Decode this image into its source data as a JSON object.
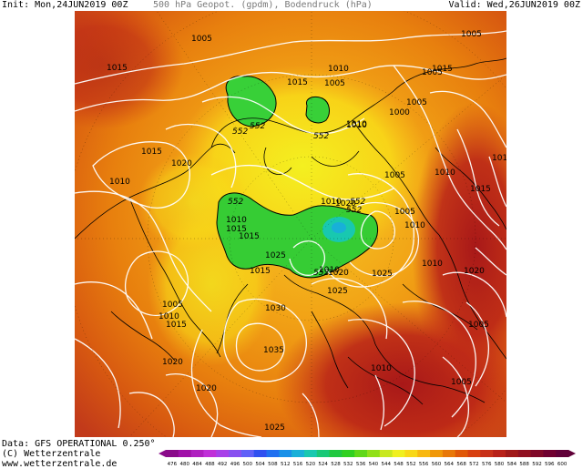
{
  "header": {
    "init": "Init: Mon,24JUN2019 00Z",
    "title": "500 hPa Geopot. (gpdm), Bodendruck (hPa)",
    "valid": "Valid: Wed,26JUN2019 00Z"
  },
  "footer": {
    "data_source": "Data: GFS OPERATIONAL 0.250°",
    "copyright": "(C) Wetterzentrale",
    "url": "www.wetterzentrale.de"
  },
  "colorbar": {
    "ticks": [
      "476",
      "480",
      "484",
      "488",
      "492",
      "496",
      "500",
      "504",
      "508",
      "512",
      "516",
      "520",
      "524",
      "528",
      "532",
      "536",
      "540",
      "544",
      "548",
      "552",
      "556",
      "560",
      "564",
      "568",
      "572",
      "576",
      "580",
      "584",
      "588",
      "592",
      "596",
      "600"
    ],
    "colors": [
      "#8a0a8a",
      "#a010a8",
      "#b020c0",
      "#c030d8",
      "#a840e8",
      "#8850f0",
      "#6060f8",
      "#3050f0",
      "#2070f0",
      "#1890e8",
      "#18b0d8",
      "#18c8b0",
      "#18c878",
      "#20c840",
      "#30d020",
      "#60d818",
      "#90e018",
      "#c8e820",
      "#f0f020",
      "#f8d818",
      "#f8b810",
      "#f09808",
      "#e87808",
      "#e05808",
      "#d84010",
      "#c83018",
      "#b82018",
      "#a01818",
      "#901020",
      "#800828",
      "#700030",
      "#600038"
    ]
  },
  "map_labels": [
    {
      "text": "1005"
    },
    {
      "text": "1015"
    },
    {
      "text": "1015"
    },
    {
      "text": "1010"
    },
    {
      "text": "1005"
    },
    {
      "text": "1010"
    },
    {
      "text": "1005"
    },
    {
      "text": "1015"
    },
    {
      "text": "1005"
    },
    {
      "text": "1005"
    },
    {
      "text": "1000"
    },
    {
      "text": "1010"
    },
    {
      "text": "1015"
    },
    {
      "text": "1020"
    },
    {
      "text": "1010"
    },
    {
      "text": "1005"
    },
    {
      "text": "1010"
    },
    {
      "text": "1015"
    },
    {
      "text": "1015"
    },
    {
      "text": "1010"
    },
    {
      "text": "1020"
    },
    {
      "text": "1010"
    },
    {
      "text": "1015"
    },
    {
      "text": "1010"
    },
    {
      "text": "1015"
    },
    {
      "text": "1025"
    },
    {
      "text": "1010"
    },
    {
      "text": "1020"
    },
    {
      "text": "1025"
    },
    {
      "text": "1015"
    },
    {
      "text": "1025"
    },
    {
      "text": "1010"
    },
    {
      "text": "1005"
    },
    {
      "text": "1010"
    },
    {
      "text": "1015"
    },
    {
      "text": "1030"
    },
    {
      "text": "1035"
    },
    {
      "text": "1020"
    },
    {
      "text": "1020"
    },
    {
      "text": "1010"
    },
    {
      "text": "1005"
    },
    {
      "text": "1005"
    },
    {
      "text": "1020"
    },
    {
      "text": "1025"
    },
    {
      "text": "1005"
    },
    {
      "text": "552"
    },
    {
      "text": "552"
    },
    {
      "text": "552"
    },
    {
      "text": "552"
    },
    {
      "text": "552"
    },
    {
      "text": "552"
    },
    {
      "text": "552"
    }
  ]
}
